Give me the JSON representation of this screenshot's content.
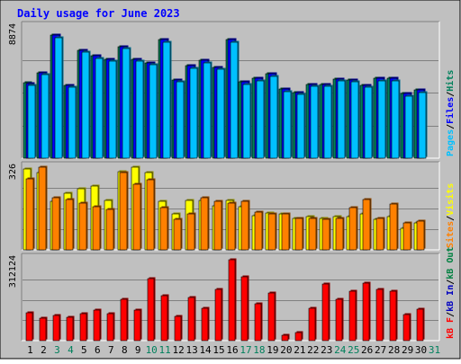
{
  "chart_data": {
    "type": "bar",
    "title": "Daily usage for June 2023",
    "days": [
      "1",
      "2",
      "3",
      "4",
      "5",
      "6",
      "7",
      "8",
      "9",
      "10",
      "11",
      "12",
      "13",
      "14",
      "15",
      "16",
      "17",
      "18",
      "19",
      "20",
      "21",
      "22",
      "23",
      "24",
      "25",
      "26",
      "27",
      "28",
      "29",
      "30",
      "31"
    ],
    "weekend_days": [
      "3",
      "4",
      "10",
      "11",
      "17",
      "18",
      "24",
      "25",
      "31"
    ],
    "colors": {
      "background": "#c0c0c0",
      "title": "#0000ff",
      "hits": "#00805c",
      "files": "#0000ff",
      "pages": "#00c0ff",
      "visits": "#ffff00",
      "sites": "#ff8000",
      "kbin": "#0000c0",
      "kbout": "#008040",
      "kbf": "#ff0000",
      "weekday": "#000000",
      "weekend": "#00805c"
    },
    "panels": [
      {
        "ymax_label": "8874",
        "ymax": 8874,
        "legend": [
          {
            "key": "pages",
            "text": "Pages"
          },
          {
            "key": "sep",
            "text": "/"
          },
          {
            "key": "files",
            "text": "Files"
          },
          {
            "key": "sep",
            "text": "/"
          },
          {
            "key": "hits",
            "text": "Hits"
          }
        ],
        "series": [
          {
            "name": "Hits",
            "color_key": "hits",
            "values": [
              5100,
              5800,
              8300,
              4950,
              7300,
              6900,
              6700,
              7550,
              6700,
              6450,
              8000,
              5300,
              6250,
              6600,
              6150,
              8000,
              5150,
              5400,
              5700,
              4650,
              4450,
              5000,
              5000,
              5350,
              5300,
              4950,
              5400,
              5400,
              4350,
              4600
            ]
          },
          {
            "name": "Files",
            "color_key": "files",
            "values": [
              5050,
              5800,
              8300,
              4950,
              7300,
              6900,
              6700,
              7550,
              6700,
              6450,
              8000,
              5300,
              6250,
              6600,
              6150,
              8000,
              5150,
              5400,
              5700,
              4650,
              4450,
              5000,
              5000,
              5350,
              5300,
              4950,
              5400,
              5400,
              4350,
              4600
            ]
          },
          {
            "name": "Pages",
            "color_key": "pages",
            "values": [
              4950,
              5650,
              8150,
              4800,
              7150,
              6750,
              6550,
              7400,
              6550,
              6300,
              7850,
              5150,
              6100,
              6450,
              6000,
              7850,
              5000,
              5250,
              5550,
              4500,
              4300,
              4850,
              4850,
              5200,
              5150,
              4800,
              5250,
              5250,
              4200,
              4450
            ]
          }
        ]
      },
      {
        "ymax_label": "326",
        "ymax": 326,
        "legend": [
          {
            "key": "sites",
            "text": "Sites"
          },
          {
            "key": "sep",
            "text": "/"
          },
          {
            "key": "visits",
            "text": "Visits"
          }
        ],
        "series": [
          {
            "name": "Visits",
            "color_key": "visits",
            "values": [
              320,
              305,
              190,
              225,
              240,
              250,
              195,
              310,
              325,
              305,
              190,
              140,
              195,
              195,
              175,
              195,
              170,
              135,
              145,
              140,
              125,
              130,
              125,
              130,
              130,
              140,
              120,
              130,
              85,
              105
            ]
          },
          {
            "name": "Sites",
            "color_key": "sites",
            "values": [
              280,
              325,
              205,
              200,
              185,
              170,
              160,
              305,
              260,
              275,
              165,
              120,
              140,
              205,
              190,
              185,
              190,
              150,
              140,
              140,
              125,
              125,
              120,
              125,
              165,
              200,
              125,
              180,
              105,
              115
            ]
          }
        ]
      },
      {
        "ymax_label": "312124",
        "ymax": 312124,
        "legend": [
          {
            "key": "kbf",
            "text": "kB F"
          },
          {
            "key": "sep",
            "text": "/"
          },
          {
            "key": "kbin",
            "text": "kB In"
          },
          {
            "key": "sep",
            "text": "/"
          },
          {
            "key": "kbout",
            "text": "kB Out"
          }
        ],
        "series": [
          {
            "name": "kB F",
            "color_key": "kbf",
            "values": [
              105000,
              85000,
              97000,
              88000,
              104000,
              116000,
              102000,
              157000,
              117000,
              235000,
              170000,
              91000,
              164000,
              123000,
              194000,
              307000,
              243000,
              140000,
              182000,
              20000,
              30000,
              123000,
              217000,
              158000,
              190000,
              220000,
              194000,
              190000,
              98000,
              119000
            ]
          }
        ]
      }
    ]
  }
}
